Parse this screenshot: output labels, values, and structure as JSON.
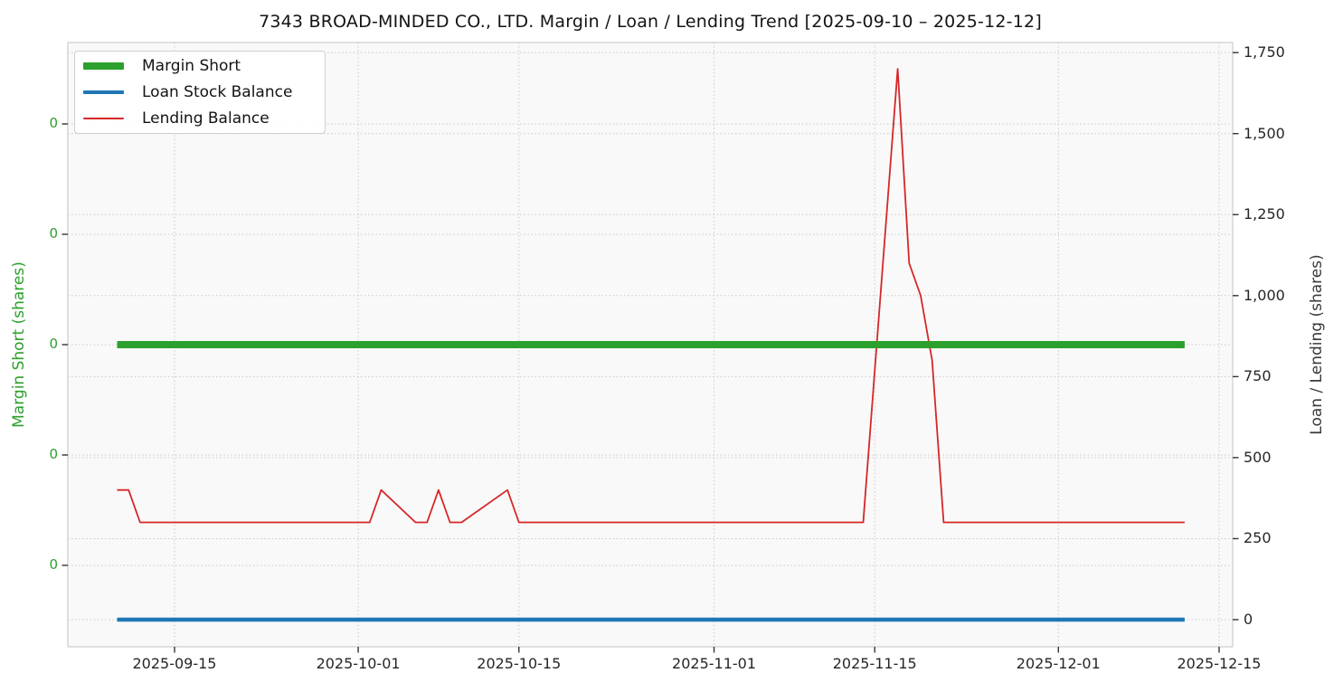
{
  "page": {
    "background": "#ffffff"
  },
  "chart_data": {
    "type": "line",
    "title": "7343 BROAD-MINDED CO., LTD. Margin / Loan / Lending Trend [2025-09-10 – 2025-12-12]",
    "date_range": [
      "2025-09-10",
      "2025-12-12"
    ],
    "x_ticks": [
      "2025-09-15",
      "2025-10-01",
      "2025-10-15",
      "2025-11-01",
      "2025-11-15",
      "2025-12-01",
      "2025-12-15"
    ],
    "left_axis": {
      "label": "Margin Short (shares)",
      "tick_labels": [
        "0",
        "0",
        "0",
        "0",
        "0"
      ],
      "color": "#2ca02c"
    },
    "right_axis": {
      "label": "Loan / Lending (shares)",
      "tick_values": [
        0,
        250,
        500,
        750,
        1000,
        1250,
        1500,
        1750
      ],
      "tick_labels": [
        "0",
        "250",
        "500",
        "750",
        "1,000",
        "1,250",
        "1,500",
        "1,750"
      ],
      "range": [
        0,
        1750
      ],
      "color": "#3a3a3a"
    },
    "grid": {
      "style": "dotted",
      "color": "#c9c9c9"
    },
    "legend": {
      "position": "upper-left"
    },
    "series": [
      {
        "name": "Margin Short",
        "axis": "left",
        "color": "#2ca02c",
        "line_width": 8,
        "points": [
          [
            "2025-09-10",
            0
          ],
          [
            "2025-12-12",
            0
          ]
        ]
      },
      {
        "name": "Loan Stock Balance",
        "axis": "right",
        "color": "#1f77b4",
        "line_width": 4.5,
        "points": [
          [
            "2025-09-10",
            0
          ],
          [
            "2025-12-12",
            0
          ]
        ]
      },
      {
        "name": "Lending Balance",
        "axis": "right",
        "color": "#d62728",
        "line_width": 1.8,
        "points": [
          [
            "2025-09-10",
            400
          ],
          [
            "2025-09-11",
            400
          ],
          [
            "2025-09-12",
            300
          ],
          [
            "2025-10-02",
            300
          ],
          [
            "2025-10-03",
            400
          ],
          [
            "2025-10-06",
            300
          ],
          [
            "2025-10-07",
            300
          ],
          [
            "2025-10-08",
            400
          ],
          [
            "2025-10-09",
            300
          ],
          [
            "2025-10-10",
            300
          ],
          [
            "2025-10-14",
            400
          ],
          [
            "2025-10-15",
            300
          ],
          [
            "2025-11-14",
            300
          ],
          [
            "2025-11-17",
            1700
          ],
          [
            "2025-11-18",
            1100
          ],
          [
            "2025-11-19",
            1000
          ],
          [
            "2025-11-20",
            800
          ],
          [
            "2025-11-21",
            300
          ],
          [
            "2025-12-12",
            300
          ]
        ]
      }
    ]
  }
}
